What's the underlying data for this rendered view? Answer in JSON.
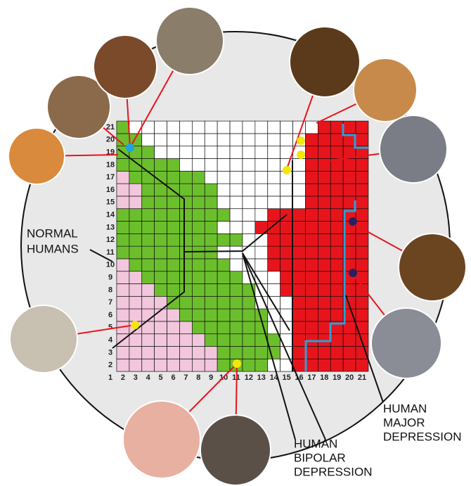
{
  "grid": {
    "column_labels": [
      "1",
      "2",
      "3",
      "4",
      "5",
      "6",
      "7",
      "8",
      "9",
      "10",
      "11",
      "12",
      "13",
      "14",
      "15",
      "16",
      "17",
      "18",
      "19",
      "20",
      "21"
    ],
    "row_labels": [
      "2",
      "3",
      "4",
      "5",
      "6",
      "7",
      "8",
      "9",
      "10",
      "11",
      "12",
      "13",
      "14",
      "15",
      "16",
      "17",
      "18",
      "19",
      "20",
      "21"
    ]
  },
  "labels": {
    "normal_humans": [
      "NORMAL",
      "HUMANS"
    ],
    "major_depression": [
      "HUMAN",
      "MAJOR",
      "DEPRESSION"
    ],
    "bipolar_depression": [
      "HUMAN",
      "BIPOLAR",
      "DEPRESSION"
    ]
  }
}
